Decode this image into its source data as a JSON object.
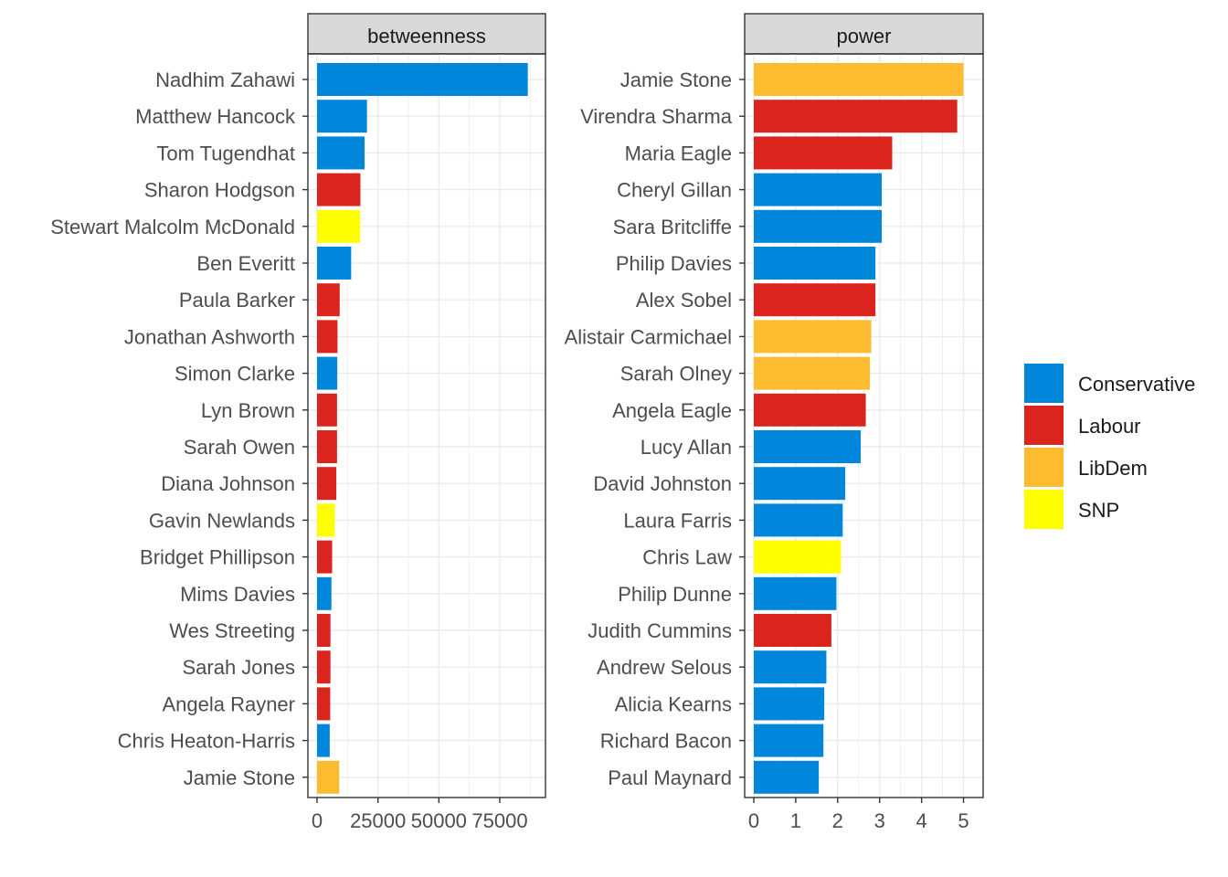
{
  "chart_data": [
    {
      "type": "bar",
      "orientation": "horizontal",
      "facet": "betweenness",
      "xlim": [
        0,
        90000
      ],
      "xticks": [
        0,
        25000,
        50000,
        75000
      ],
      "grid": true,
      "categories": [
        "Nadhim Zahawi",
        "Matthew Hancock",
        "Tom Tugendhat",
        "Sharon Hodgson",
        "Stewart Malcolm McDonald",
        "Ben Everitt",
        "Paula Barker",
        "Jonathan Ashworth",
        "Simon Clarke",
        "Lyn Brown",
        "Sarah Owen",
        "Diana Johnson",
        "Gavin Newlands",
        "Bridget Phillipson",
        "Mims Davies",
        "Wes Streeting",
        "Sarah Jones",
        "Angela Rayner",
        "Chris Heaton-Harris",
        "Jamie Stone"
      ],
      "values": [
        86500,
        20500,
        19500,
        17800,
        17700,
        14000,
        9300,
        8400,
        8300,
        8200,
        8200,
        7900,
        7300,
        6200,
        5900,
        5500,
        5500,
        5400,
        5200,
        9100
      ],
      "party": [
        "Conservative",
        "Conservative",
        "Conservative",
        "Labour",
        "SNP",
        "Conservative",
        "Labour",
        "Labour",
        "Conservative",
        "Labour",
        "Labour",
        "Labour",
        "SNP",
        "Labour",
        "Conservative",
        "Labour",
        "Labour",
        "Labour",
        "Conservative",
        "LibDem"
      ]
    },
    {
      "type": "bar",
      "orientation": "horizontal",
      "facet": "power",
      "xlim": [
        0,
        5.25
      ],
      "xticks": [
        0,
        1,
        2,
        3,
        4,
        5
      ],
      "grid": true,
      "categories": [
        "Jamie Stone",
        "Virendra Sharma",
        "Maria Eagle",
        "Cheryl Gillan",
        "Sara Britcliffe",
        "Philip Davies",
        "Alex Sobel",
        "Alistair Carmichael",
        "Sarah Olney",
        "Angela Eagle",
        "Lucy Allan",
        "David Johnston",
        "Laura Farris",
        "Chris Law",
        "Philip Dunne",
        "Judith Cummins",
        "Andrew Selous",
        "Alicia Kearns",
        "Richard Bacon",
        "Paul Maynard"
      ],
      "values": [
        5.0,
        4.85,
        3.3,
        3.05,
        3.05,
        2.9,
        2.9,
        2.8,
        2.77,
        2.67,
        2.55,
        2.18,
        2.12,
        2.08,
        1.97,
        1.85,
        1.73,
        1.68,
        1.66,
        1.55
      ],
      "party": [
        "LibDem",
        "Labour",
        "Labour",
        "Conservative",
        "Conservative",
        "Conservative",
        "Labour",
        "LibDem",
        "LibDem",
        "Labour",
        "Conservative",
        "Conservative",
        "Conservative",
        "SNP",
        "Conservative",
        "Labour",
        "Conservative",
        "Conservative",
        "Conservative",
        "Conservative"
      ]
    }
  ],
  "legend": {
    "placement": "right",
    "items": [
      {
        "label": "Conservative",
        "color": "#0087DC"
      },
      {
        "label": "Labour",
        "color": "#DC241F"
      },
      {
        "label": "LibDem",
        "color": "#FDBB30"
      },
      {
        "label": "SNP",
        "color": "#FFFF00"
      }
    ]
  },
  "colors": {
    "Conservative": "#0087DC",
    "Labour": "#DC241F",
    "LibDem": "#FDBB30",
    "SNP": "#FFFF00",
    "strip_fill": "#D9D9D9",
    "grid": "#EBEBEB",
    "panel_border": "#333333"
  }
}
